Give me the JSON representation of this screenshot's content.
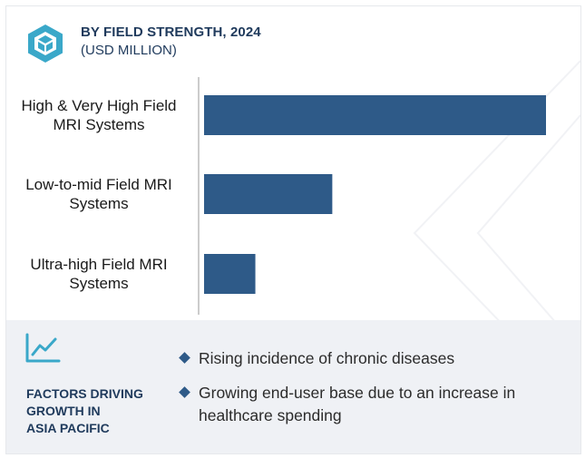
{
  "header": {
    "title": "BY FIELD STRENGTH, 2024",
    "subtitle": "(USD MILLION)",
    "logo_icon": "cube-logo-icon"
  },
  "chart_data": {
    "type": "bar",
    "orientation": "horizontal",
    "title": "BY FIELD STRENGTH, 2024",
    "subtitle": "(USD MILLION)",
    "categories": [
      "High & Very High Field\nMRI Systems",
      "Low-to-mid Field MRI\nSystems",
      "Ultra-high Field MRI\nSystems"
    ],
    "values": [
      100,
      37.5,
      15
    ],
    "value_note": "relative values estimated; no numeric axis shown",
    "xlim": [
      0,
      100
    ],
    "bar_color": "#2e5a88",
    "grid": false,
    "legend": "none"
  },
  "footer": {
    "icon": "line-chart-icon",
    "factors_title": "FACTORS DRIVING\nGROWTH IN\nASIA PACIFIC",
    "bullets": [
      "Rising incidence of chronic diseases",
      "Growing end-user base due to an increase in healthcare spending"
    ],
    "accent_color": "#2e5a88"
  }
}
